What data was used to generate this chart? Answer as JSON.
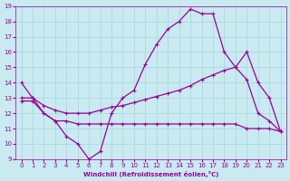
{
  "xlabel": "Windchill (Refroidissement éolien,°C)",
  "bg_color": "#c8eaf0",
  "line_color": "#990099",
  "grid_color": "#aad4dc",
  "ylim": [
    9,
    19
  ],
  "yticks": [
    9,
    10,
    11,
    12,
    13,
    14,
    15,
    16,
    17,
    18,
    19
  ],
  "xticks": [
    0,
    1,
    2,
    3,
    4,
    5,
    6,
    7,
    8,
    9,
    10,
    11,
    12,
    13,
    14,
    15,
    16,
    17,
    18,
    19,
    20,
    21,
    22,
    23
  ],
  "line_wave_x": [
    0,
    1,
    2,
    3,
    4,
    5,
    6,
    7,
    8,
    9,
    10,
    11,
    12,
    13,
    14,
    15,
    16,
    17,
    18,
    19,
    20,
    21,
    22,
    23
  ],
  "line_wave_y": [
    14,
    13,
    12,
    11.5,
    10.5,
    10,
    9,
    9.5,
    12,
    13,
    13.5,
    15.2,
    16.5,
    17.5,
    18,
    18.8,
    18.5,
    18.5,
    16,
    15,
    14.2,
    12.0,
    11.5,
    10.8
  ],
  "line_mid_x": [
    0,
    1,
    2,
    3,
    4,
    5,
    6,
    7,
    8,
    9,
    10,
    11,
    12,
    13,
    14,
    15,
    16,
    17,
    18,
    19,
    20,
    21,
    22,
    23
  ],
  "line_mid_y": [
    13,
    13,
    12.5,
    12.2,
    12.0,
    12.0,
    12.0,
    12.2,
    12.4,
    12.5,
    12.7,
    12.9,
    13.1,
    13.3,
    13.5,
    13.8,
    14.2,
    14.5,
    14.8,
    15.0,
    16.0,
    14.0,
    13.0,
    10.8
  ],
  "line_flat_x": [
    0,
    1,
    2,
    3,
    4,
    5,
    6,
    7,
    8,
    9,
    10,
    11,
    12,
    13,
    14,
    15,
    16,
    17,
    18,
    19,
    20,
    21,
    22,
    23
  ],
  "line_flat_y": [
    12.8,
    12.8,
    12.0,
    11.5,
    11.5,
    11.3,
    11.3,
    11.3,
    11.3,
    11.3,
    11.3,
    11.3,
    11.3,
    11.3,
    11.3,
    11.3,
    11.3,
    11.3,
    11.3,
    11.3,
    11.0,
    11.0,
    11.0,
    10.8
  ],
  "marker": "+"
}
